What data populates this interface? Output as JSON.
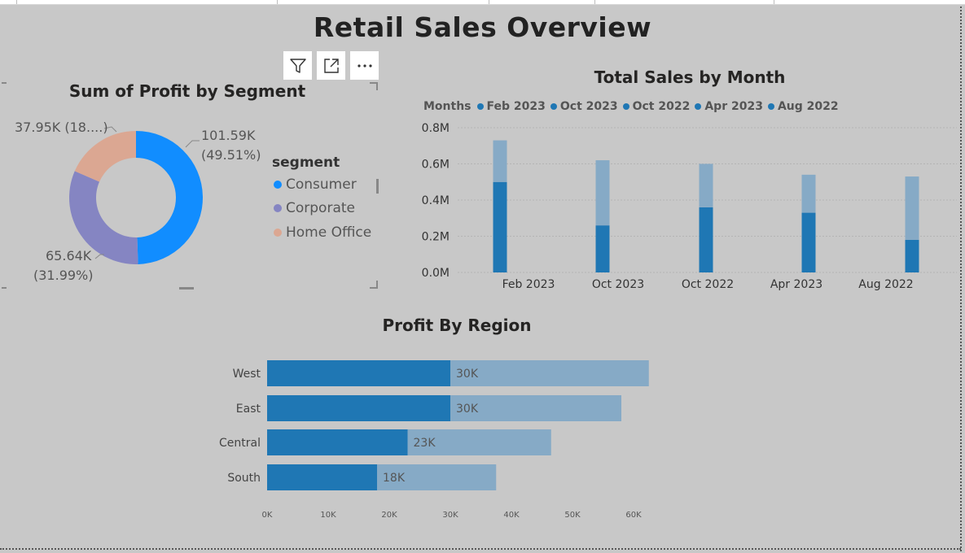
{
  "report": {
    "title": "Retail Sales Overview"
  },
  "toolbar": {
    "icons": [
      "filter-icon",
      "focus-mode-icon",
      "more-options-icon"
    ]
  },
  "colors": {
    "background": "#c8c8c8",
    "consumer": "#118dff",
    "corporate": "#8585c2",
    "home_office": "#dba792",
    "bar_dark": "#1f77b4",
    "bar_light": "#86aac6"
  },
  "segment_chart": {
    "title": "Sum of Profit by Segment",
    "labels": {
      "consumer_value": "101.59K",
      "consumer_pct": "(49.51%)",
      "corporate_value": "65.64K",
      "corporate_pct": "(31.99%)",
      "home_office": "37.95K (18....)"
    },
    "legend": {
      "title": "segment",
      "items": [
        "Consumer",
        "Corporate",
        "Home Office"
      ]
    }
  },
  "month_chart": {
    "title": "Total Sales by Month",
    "legend_title": "Months",
    "legend_items": [
      "Feb 2023",
      "Oct 2023",
      "Oct 2022",
      "Apr 2023",
      "Aug 2022"
    ],
    "y_ticks": [
      "0.8M",
      "0.6M",
      "0.4M",
      "0.2M",
      "0.0M"
    ]
  },
  "region_chart": {
    "title": "Profit By Region",
    "x_ticks": [
      "0K",
      "10K",
      "20K",
      "30K",
      "40K",
      "50K",
      "60K"
    ]
  },
  "chart_data": [
    {
      "type": "pie",
      "title": "Sum of Profit by Segment",
      "categories": [
        "Consumer",
        "Corporate",
        "Home Office"
      ],
      "values": [
        101590,
        65640,
        37950
      ],
      "percentages": [
        49.51,
        31.99,
        18.5
      ],
      "legend": "right"
    },
    {
      "type": "bar",
      "title": "Total Sales by Month",
      "categories": [
        "Feb 2023",
        "Oct 2023",
        "Oct 2022",
        "Apr 2023",
        "Aug 2022"
      ],
      "series": [
        {
          "values": [
            0.5,
            0.26,
            0.36,
            0.33,
            0.18
          ]
        },
        {
          "values": [
            0.23,
            0.36,
            0.24,
            0.21,
            0.35
          ]
        }
      ],
      "stacked": true,
      "ylim": [
        0,
        0.8
      ],
      "y_unit": "M",
      "grid": true,
      "legend": "top-left"
    },
    {
      "type": "bar",
      "orientation": "horizontal",
      "title": "Profit By Region",
      "categories": [
        "West",
        "East",
        "Central",
        "South"
      ],
      "series": [
        {
          "values": [
            30,
            30,
            23,
            18
          ],
          "data_labels": [
            "30K",
            "30K",
            "23K",
            "18K"
          ]
        },
        {
          "values": [
            32.5,
            28,
            23.5,
            19.5
          ]
        }
      ],
      "xlim": [
        0,
        60
      ],
      "x_unit": "K"
    }
  ]
}
